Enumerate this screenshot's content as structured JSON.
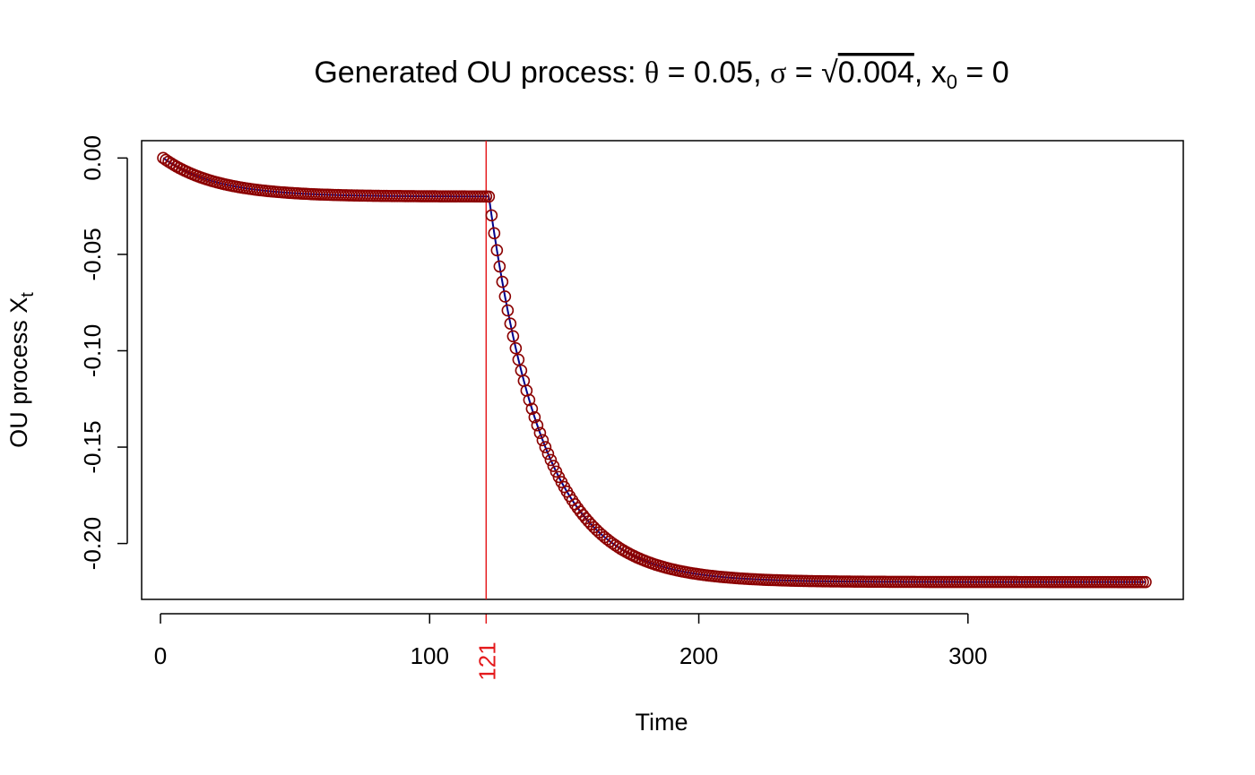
{
  "chart_data": {
    "type": "line",
    "title": {
      "prefix": "Generated OU process: ",
      "theta_symbol": "θ",
      "eq": " = ",
      "theta_value": "0.05",
      "sep1": ", ",
      "sigma_symbol": "σ",
      "sqrt_symbol": "√",
      "sigma_radicand": "0.004",
      "sep2": ", ",
      "x0_var": "x",
      "x0_sub": "0",
      "x0_value": "0"
    },
    "xlabel": "Time",
    "ylabel": {
      "text": "OU process X",
      "sub": "t"
    },
    "xlim": [
      -7,
      380
    ],
    "ylim": [
      -0.229,
      0.009
    ],
    "x_ticks": [
      0,
      100,
      200,
      300
    ],
    "x_tick_labels": [
      "0",
      "100",
      "200",
      "300"
    ],
    "y_ticks": [
      0,
      -0.05,
      -0.1,
      -0.15,
      -0.2
    ],
    "y_tick_labels": [
      "0.00",
      "-0.05",
      "-0.10",
      "-0.15",
      "-0.20"
    ],
    "changepoint": {
      "x": 121,
      "label": "121",
      "color": "#e41a1c"
    },
    "series": [
      {
        "n": 366,
        "segments": [
          {
            "from": 1,
            "to": 121,
            "start": 0,
            "level": -0.02,
            "theta": 0.05
          },
          {
            "from": 122,
            "to": 366,
            "start": -0.02,
            "level": -0.22,
            "theta": 0.05
          }
        ],
        "marker": "open-circle",
        "point_color": "#8b0000",
        "line_color": "#00008b"
      }
    ],
    "grid": false,
    "legend": "none"
  }
}
